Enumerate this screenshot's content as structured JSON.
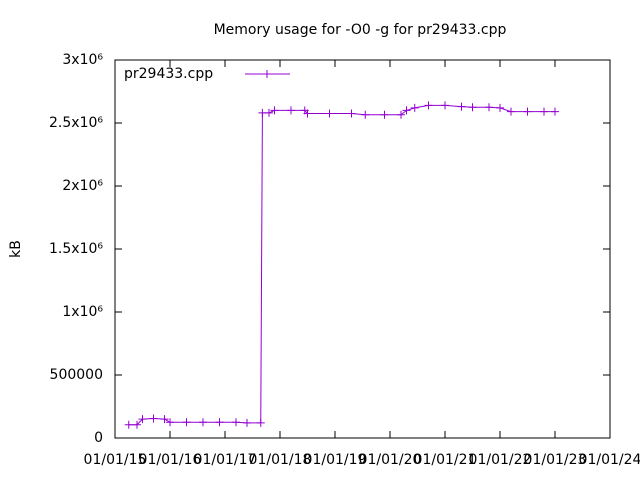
{
  "chart_data": {
    "type": "line",
    "title": "Memory usage for -O0 -g for pr29433.cpp",
    "y_label": "kB",
    "legend_position": "top-left",
    "xlim": [
      2015,
      2024
    ],
    "xticks": [
      {
        "value": 2015,
        "label": "01/01/15"
      },
      {
        "value": 2016,
        "label": "01/01/16"
      },
      {
        "value": 2017,
        "label": "01/01/17"
      },
      {
        "value": 2018,
        "label": "01/01/18"
      },
      {
        "value": 2019,
        "label": "01/01/19"
      },
      {
        "value": 2020,
        "label": "01/01/20"
      },
      {
        "value": 2021,
        "label": "01/01/21"
      },
      {
        "value": 2022,
        "label": "01/01/22"
      },
      {
        "value": 2023,
        "label": "01/01/23"
      },
      {
        "value": 2024,
        "label": "01/01/24"
      }
    ],
    "ylim": [
      0,
      3000000
    ],
    "yticks": [
      0,
      500000,
      {
        "value": 1000000,
        "label": "1x10⁶"
      },
      {
        "value": 1500000,
        "label": "1.5x10⁶"
      },
      {
        "value": 2000000,
        "label": "2x10⁶"
      },
      {
        "value": 2500000,
        "label": "2.5x10⁶"
      },
      {
        "value": 3000000,
        "label": "3x10⁶"
      }
    ],
    "x": [
      2015.25,
      2015.4,
      2015.5,
      2015.7,
      2015.9,
      2016.0,
      2016.3,
      2016.6,
      2016.9,
      2017.2,
      2017.4,
      2017.65,
      2017.68,
      2017.8,
      2017.9,
      2018.2,
      2018.45,
      2018.5,
      2018.9,
      2019.3,
      2019.55,
      2019.9,
      2020.2,
      2020.3,
      2020.45,
      2020.7,
      2021.0,
      2021.3,
      2021.5,
      2021.8,
      2022.0,
      2022.2,
      2022.5,
      2022.8,
      2023.0
    ],
    "series": [
      {
        "name": "pr29433.cpp",
        "color": "#9400d3",
        "values": [
          105000,
          105000,
          150000,
          155000,
          150000,
          125000,
          125000,
          125000,
          125000,
          125000,
          120000,
          120000,
          2580000,
          2580000,
          2600000,
          2600000,
          2600000,
          2575000,
          2575000,
          2575000,
          2565000,
          2565000,
          2565000,
          2600000,
          2620000,
          2640000,
          2640000,
          2630000,
          2625000,
          2625000,
          2620000,
          2590000,
          2590000,
          2590000,
          2590000
        ]
      }
    ]
  }
}
